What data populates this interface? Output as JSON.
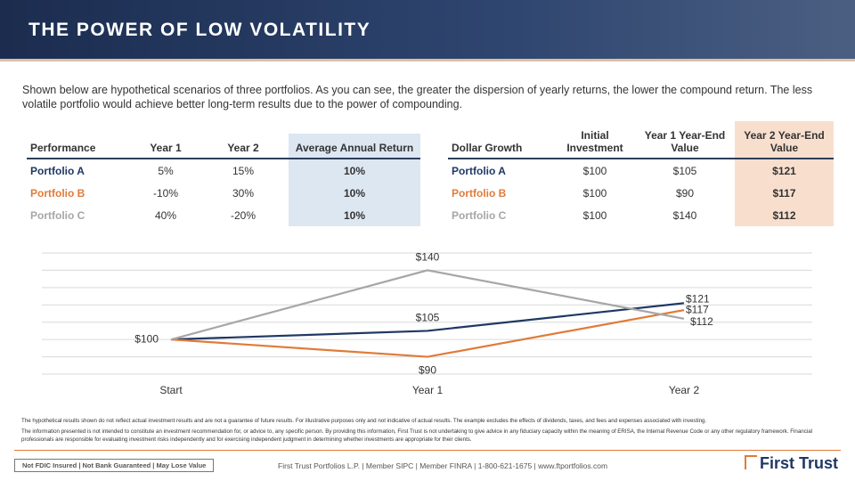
{
  "header": {
    "title": "THE POWER OF LOW VOLATILITY"
  },
  "intro": "Shown below are hypothetical scenarios of three portfolios. As you can see, the greater the dispersion of yearly returns, the lower the compound return. The less volatile portfolio would achieve better long-term results due to the power of compounding.",
  "performance_table": {
    "columns": [
      "Performance",
      "Year 1",
      "Year 2",
      "Average Annual Return"
    ],
    "rows": [
      [
        "Portfolio A",
        "5%",
        "15%",
        "10%"
      ],
      [
        "Portfolio B",
        "-10%",
        "30%",
        "10%"
      ],
      [
        "Portfolio C",
        "40%",
        "-20%",
        "10%"
      ]
    ]
  },
  "growth_table": {
    "columns": [
      "Dollar Growth",
      "Initial Investment",
      "Year 1 Year-End Value",
      "Year 2 Year-End Value"
    ],
    "rows": [
      [
        "Portfolio A",
        "$100",
        "$105",
        "$121"
      ],
      [
        "Portfolio B",
        "$100",
        "$90",
        "$117"
      ],
      [
        "Portfolio C",
        "$100",
        "$140",
        "$112"
      ]
    ]
  },
  "chart_data": {
    "type": "line",
    "categories": [
      "Start",
      "Year 1",
      "Year 2"
    ],
    "series": [
      {
        "name": "Portfolio A",
        "color": "#1f3864",
        "values": [
          100,
          105,
          121
        ],
        "value_labels": [
          "$100",
          "$105",
          "$121"
        ]
      },
      {
        "name": "Portfolio B",
        "color": "#e07b39",
        "values": [
          100,
          90,
          117
        ],
        "value_labels": [
          null,
          "$90",
          "$117"
        ]
      },
      {
        "name": "Portfolio C",
        "color": "#a6a6a6",
        "values": [
          100,
          140,
          112
        ],
        "value_labels": [
          null,
          "$140",
          "$112"
        ]
      }
    ],
    "ylim": [
      80,
      150
    ],
    "yticks": [
      80,
      90,
      100,
      110,
      120,
      130,
      140,
      150
    ],
    "grid": true
  },
  "disclaimer": [
    "The hypothetical results shown do not reflect actual investment results and are not a guarantee of future results. For illustrative purposes only and not indicative of actual results. The example excludes the effects of dividends, taxes, and fees and expenses associated with investing.",
    "The information presented is not intended to constitute an investment recommendation for, or advice to, any specific person. By providing this information, First Trust is not undertaking to give advice in any fiduciary capacity within the meaning of ERISA, the Internal Revenue Code or any other regulatory framework. Financial professionals are responsible for evaluating investment risks independently and for exercising independent judgment in determining whether investments are appropriate for their clients."
  ],
  "footer": {
    "badge": "Not FDIC Insured | Not Bank Guaranteed | May Lose Value",
    "contact": "First Trust Portfolios L.P. | Member SIPC | Member FINRA | 1-800-621-1675 | www.ftportfolios.com",
    "logo": "First Trust"
  }
}
